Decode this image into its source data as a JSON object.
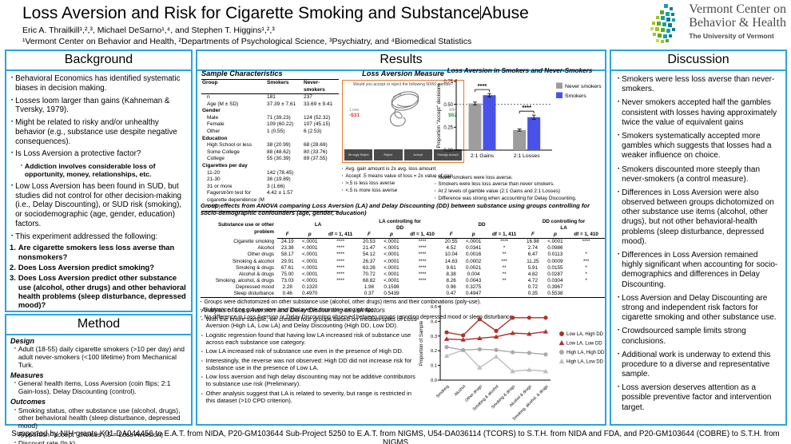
{
  "colors": {
    "accent_blue": "#2aa5dd",
    "accent_orange": "#e87a2e"
  },
  "header": {
    "title_a": "Loss Aversion and Risk for Cigarette Smoking and Substance",
    "title_b": "Abuse",
    "authors": "Eric A. Thrailkill¹,²,³, Michael DeSarno¹,⁴, and Stephen T. Higgins¹,²,³",
    "affiliations": "¹Vermont Center on Behavior and Health, ²Departments of Psychological Science, ³Psychiatry, and ⁴Biomedical Statistics",
    "logo": {
      "line1": "Vermont Center on",
      "line2": "Behavior & Health",
      "line3": "The University of Vermont"
    }
  },
  "sections": {
    "background": {
      "title": "Background",
      "items": [
        {
          "text": "Behavioral Economics has identified systematic biases in decision making."
        },
        {
          "text": "Losses loom larger than gains (Kahneman & Tversky, 1979)."
        },
        {
          "text": "Might be related to risky and/or unhealthy behavior (e.g., substance use despite negative consequences)."
        },
        {
          "text": "Is Loss Aversion a protective factor?"
        },
        {
          "text": "Addiction involves considerable loss of opportunity, money, relationships, etc.",
          "cls": "sub"
        },
        {
          "text": "Low Loss Aversion has been found in SUD, but studies did not control for other decision-making (i.e., Delay Discounting), or SUD risk (smoking), or sociodemographic (age, gender, education) factors."
        },
        {
          "text": "This experiment addressed the following:"
        },
        {
          "text": "Are cigarette smokers less loss averse than nonsmokers?",
          "marker": "1.",
          "cls": "num"
        },
        {
          "text": "Does Loss Aversion predict smoking?",
          "marker": "2.",
          "cls": "num"
        },
        {
          "text": "Does Loss Aversion predict other substance use (alcohol, other drugs) and other behavioral health problems (sleep disturbance, depressed mood)?",
          "marker": "3.",
          "cls": "num"
        }
      ]
    },
    "method": {
      "title": "Method",
      "items": [
        {
          "text": "Design",
          "cls": "head",
          "marker": ""
        },
        {
          "text": "Adult (18-55) daily cigarette smokers (>10 per day) and adult never-smokers (<100 lifetime) from Mechanical Turk."
        },
        {
          "text": "Measures",
          "cls": "head",
          "marker": ""
        },
        {
          "text": "General health items, Loss Aversion (coin flips; 2:1 Gain-loss), Delay Discounting (control)."
        },
        {
          "text": "Outcomes",
          "cls": "head",
          "marker": ""
        },
        {
          "text": "Smoking status, other substance use (alcohol, drugs), other behavioral health (sleep disturbance, depressed mood)"
        },
        {
          "text": "Proportion \"accept\" choices (.5 = Loss Aversion)"
        },
        {
          "text": "Discount rate (ln k)"
        }
      ]
    },
    "results": {
      "title": "Results"
    },
    "discussion": {
      "title": "Discussion",
      "items": [
        "Smokers were less loss averse than never-smokers.",
        "Never smokers accepted half the gambles consistent with losses having approximately twice the value of equivalent gains",
        "Smokers systematically accepted more gambles which suggests that losses had a weaker influence on choice.",
        "Smokers discounted more steeply than never-smokers (a control measure).",
        "Differences in Loss Aversion were also observed between groups dichotomized on other substance use items (alcohol, other drugs), but not other behavioral-health problems (sleep disturbance, depressed mood).",
        "Differences in Loss Aversion remained highly significant when accounting for socio-demographics and differences in Delay Discounting.",
        "Loss Aversion and Delay Discounting are strong and independent risk factors for cigarette smoking and other substance use.",
        "Crowdsourced sample limits strong conclusions.",
        "Additional work is underway to extend this procedure to a diverse and representative sample.",
        "Loss aversion deserves attention as a possible preventive factor and intervention target."
      ]
    }
  },
  "results": {
    "sample_table": {
      "title": "Sample Characteristics",
      "columns": [
        "Group",
        "Smokers",
        "Never-smokers"
      ],
      "rows": [
        {
          "label": "n",
          "s": "181",
          "ns": "237"
        },
        {
          "label": "Age (M ± SD)",
          "s": "37.39 ± 7.61",
          "ns": "33.69 ± 9.41"
        },
        {
          "label": "Gender",
          "section": true
        },
        {
          "label": "Male",
          "s": "71 (39.23)",
          "ns": "124 (52.32)"
        },
        {
          "label": "Female",
          "s": "109 (60.22)",
          "ns": "107 (45.15)"
        },
        {
          "label": "Other",
          "s": "1 (0.55)",
          "ns": "6 (2.53)"
        },
        {
          "label": "Education",
          "section": true
        },
        {
          "label": "High School or less",
          "s": "38 (20.99)",
          "ns": "68 (28.69)"
        },
        {
          "label": "Some College",
          "s": "88 (48.62)",
          "ns": "80 (33.76)"
        },
        {
          "label": "College",
          "s": "55 (30.39)",
          "ns": "89 (37.55)"
        },
        {
          "label": "Cigarettes per day",
          "section": true
        },
        {
          "label": "11-20",
          "s": "142 (78.45)",
          "ns": ""
        },
        {
          "label": "21-30",
          "s": "36 (19.89)",
          "ns": ""
        },
        {
          "label": "31 or more",
          "s": "3 (1.66)",
          "ns": ""
        },
        {
          "label": "Fagerström test for cigarette dependence (M ± SD)",
          "s": "4.42 ± 1.57",
          "ns": ""
        }
      ]
    },
    "measure": {
      "title": "Loss Aversion Measure",
      "question": "Would you accept or reject the following 50/50 gamble?",
      "lose_label": "Lose",
      "lose_value": "-$31",
      "win_label": "Win",
      "win_value": "$62",
      "buttons": [
        "Strongly Reject",
        "Reject",
        "Accept",
        "Strongly Accept"
      ],
      "bullets": [
        "Avg. gain amount is 2x avg. loss amount",
        "Accept .5 means value of loss = 2x value of gain",
        ">.5 is less loss averse",
        "<.5 is more loss averse"
      ]
    },
    "bar_chart_notes": [
      "Never-smokers were loss averse.",
      "Smokers were less loss averse than never smokers.",
      "At 2 levels of gamble value (2:1 Gains and 2:1 Losses)",
      "Difference was strong when accounting for Delay Discounting."
    ],
    "anova": {
      "title": "Group effects from ANOVA comparing Loss Aversion (LA) and Delay Discounting (DD) between substance using groups controlling for socio-demographic confounders (age, gender, education)",
      "row_header": "Substance use or other problem",
      "col_groups": [
        {
          "label": "LA",
          "df": "df = 1, 411"
        },
        {
          "label": "LA controlling for\nDD",
          "df": "df = 1, 410"
        },
        {
          "label": "DD",
          "df": "df = 1, 411"
        },
        {
          "label": "DD controlling for\nLA",
          "df": "df = 1, 410"
        }
      ],
      "sub_headers": [
        "F",
        "p"
      ],
      "rows": [
        {
          "label": "Cigarette smoking",
          "cells": [
            "24.19",
            "<.0001",
            "****",
            "20.53",
            "<.0001",
            "****",
            "20.55",
            "<.0001",
            "****",
            "16.98",
            "<.0001",
            "****"
          ]
        },
        {
          "label": "Alcohol",
          "cells": [
            "23.38",
            "<.0001",
            "****",
            "21.47",
            "<.0001",
            "****",
            "4.52",
            "0.0341",
            "*",
            "2.74",
            "0.0986",
            ""
          ]
        },
        {
          "label": "Other drugs",
          "cells": [
            "58.17",
            "<.0001",
            "****",
            "54.12",
            "<.0001",
            "****",
            "10.04",
            "0.0016",
            "**",
            "6.47",
            "0.0113",
            "*"
          ]
        },
        {
          "label": "Smoking & alcohol",
          "cells": [
            "29.91",
            "<.0001",
            "****",
            "26.37",
            "<.0001",
            "****",
            "14.63",
            "0.0002",
            "***",
            "11.25",
            "0.0009",
            "***"
          ]
        },
        {
          "label": "Smoking & drugs",
          "cells": [
            "67.61",
            "<.0001",
            "****",
            "63.26",
            "<.0001",
            "****",
            "9.61",
            "0.0021",
            "**",
            "5.91",
            "0.0155",
            "*"
          ]
        },
        {
          "label": "Alcohol & drugs",
          "cells": [
            "75.00",
            "<.0001",
            "****",
            "70.72",
            "<.0001",
            "****",
            "8.38",
            "0.004",
            "**",
            "4.82",
            "0.0287",
            "*"
          ]
        },
        {
          "label": "Smoking, alcohol, & drugs",
          "cells": [
            "73.03",
            "<.0001",
            "****",
            "68.82",
            "<.0001",
            "****",
            "8.26",
            "0.0043",
            "**",
            "4.72",
            "0.0304",
            "*"
          ]
        },
        {
          "label": "Depressed mood",
          "cells": [
            "2.28",
            "0.1320",
            "",
            "1.98",
            "0.1598",
            "",
            "0.96",
            "0.3275",
            "",
            "0.72",
            "0.3967",
            ""
          ]
        },
        {
          "label": "Sleep disturbance",
          "cells": [
            "0.46",
            "0.4970",
            "",
            "0.37",
            "0.5439",
            "",
            "0.47",
            "0.4947",
            "",
            "0.35",
            "0.5538",
            ""
          ]
        }
      ],
      "bullets": [
        "Groups were dichotomized on other substance use (alcohol, other drugs) items and their combinations (poly-use).",
        "Substance using groups were less loss averse than non-using groups.",
        "No difference in Loss Aversion or Delay Discounting observed between groups reporting depressed mood or sleep disturbance."
      ]
    },
    "risk_analysis": {
      "title": "Analysis of Loss Aversion and Delay Discounting as risk factors",
      "items": [
        "With the entire sample, we created four groups based on median splits of Loss Aversion (High LA, Low LA) and Delay Discounting (High DD, Low DD).",
        "Logistic regression found that having low LA increased risk of substance use across each substance use category.",
        "Low LA increased risk of substance use even in the presence of High DD.",
        "Interestingly, the reverse was not observed: High DD did not increase risk for substance use in the presence of Low LA.",
        "Low loss aversion and high delay discounting may not be additive contributors to substance use risk (Preliminary).",
        "Other analysis suggest that LA is related to severity, but range is restricted in this dataset (>10 CPD criterion)."
      ]
    }
  },
  "chart_data": [
    {
      "type": "bar",
      "title": "Loss Aversion in Smokers and Never-Smokers",
      "categories": [
        "2:1 Gains",
        "2:1 Losses"
      ],
      "series": [
        {
          "name": "Never smokers",
          "color": "#9d9d9d",
          "values": [
            0.51,
            0.22
          ],
          "errors": [
            0.015,
            0.012
          ]
        },
        {
          "name": "Smokers",
          "color": "#4852e8",
          "values": [
            0.6,
            0.36
          ],
          "errors": [
            0.018,
            0.022
          ]
        }
      ],
      "ylabel": "Proportion \"Accept\" decisions",
      "ylim": [
        0,
        0.75
      ],
      "yticks": [
        0,
        0.25,
        0.5,
        0.75
      ],
      "ref_line": 0.5,
      "sig_labels": [
        "****",
        "****"
      ],
      "legend_position": "right",
      "grid": false
    },
    {
      "type": "line",
      "title": "",
      "categories": [
        "Smoking",
        "Alcohol",
        "Other drugs",
        "Smoking & alcohol",
        "Smoking & drugs",
        "Alcohol & drugs",
        "Smoking, alcohol, & drugs"
      ],
      "series": [
        {
          "name": "Low LA, High DD",
          "color": "#ae3129",
          "marker": "circle",
          "values": [
            0.325,
            0.305,
            0.415,
            0.335,
            0.425,
            0.425,
            0.425
          ]
        },
        {
          "name": "Low LA, Low DD",
          "color": "#ae3129",
          "marker": "triangle",
          "values": [
            0.28,
            0.275,
            0.285,
            0.295,
            0.32,
            0.315,
            0.33
          ]
        },
        {
          "name": "High LA, High DD",
          "color": "#a8a8a8",
          "marker": "circle",
          "values": [
            0.225,
            0.205,
            0.21,
            0.205,
            0.19,
            0.185,
            0.175
          ]
        },
        {
          "name": "High LA, Low DD",
          "color": "#bdbdbd",
          "marker": "triangle",
          "values": [
            0.165,
            0.205,
            0.085,
            0.16,
            0.06,
            0.07,
            0.06
          ]
        }
      ],
      "ylabel": "Proportion of Sample",
      "ylim": [
        0,
        0.5
      ],
      "yticks": [
        0,
        0.1,
        0.2,
        0.3,
        0.4,
        0.5
      ],
      "legend_position": "right",
      "grid": false
    }
  ],
  "footer": {
    "text": "Supported by NIH grants K01-DA044456 to E.A.T. from NIDA, P20-GM103644 Sub-Project 5250 to E.A.T. from NIGMS, U54-DA036114 (TCORS) to S.T.H. from NIDA and FDA, and P20-GM103644 (COBRE) to S.T.H. from NIGMS"
  }
}
